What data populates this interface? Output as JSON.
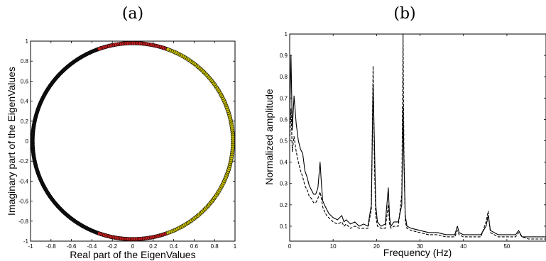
{
  "chart_data": [
    {
      "type": "scatter",
      "panel_label": "(a)",
      "xlabel": "Real part of the EigenValues",
      "ylabel": "Imaginary part of the EigenValues",
      "xlim": [
        -1,
        1
      ],
      "ylim": [
        -1,
        1
      ],
      "xticks": [
        "-1",
        "-0.8",
        "-0.6",
        "-0.4",
        "-0.2",
        "0",
        "0.2",
        "0.4",
        "0.6",
        "0.8",
        "1"
      ],
      "yticks": [
        "-1",
        "-0.8",
        "-0.6",
        "-0.4",
        "-0.2",
        "0",
        "0.2",
        "0.4",
        "0.6",
        "0.8",
        "1"
      ],
      "grid": false,
      "series": [
        {
          "color": "#111111",
          "angle_deg_range": [
            100,
            260
          ],
          "radius": 0.98,
          "count": 160
        },
        {
          "color": "#d02020",
          "angle_deg_range": [
            70,
            110
          ],
          "radius": 0.98,
          "count": 40
        },
        {
          "color": "#d02020",
          "angle_deg_range": [
            250,
            290
          ],
          "radius": 0.98,
          "count": 40
        },
        {
          "color": "#c8c000",
          "angle_deg_range": [
            -70,
            70
          ],
          "radius": 0.98,
          "count": 120
        }
      ]
    },
    {
      "type": "line",
      "panel_label": "(b)",
      "xlabel": "Frequency (Hz)",
      "ylabel": "Normalized amplitude",
      "xlim": [
        0,
        59
      ],
      "ylim": [
        0.03,
        1
      ],
      "xticks": [
        "0",
        "10",
        "20",
        "30",
        "40",
        "50"
      ],
      "yticks": [
        "0.1",
        "0.2",
        "0.3",
        "0.4",
        "0.5",
        "0.6",
        "0.7",
        "0.8",
        "0.9",
        "1"
      ],
      "grid": false,
      "series": [
        {
          "style": "solid",
          "x": [
            0,
            0.3,
            0.6,
            1.0,
            1.5,
            2.0,
            2.5,
            3.0,
            3.5,
            4.0,
            4.5,
            5.0,
            5.5,
            6.0,
            6.5,
            7.0,
            7.3,
            7.6,
            8.0,
            8.5,
            9.0,
            10.0,
            11.0,
            12.0,
            12.5,
            13.0,
            14.0,
            15.0,
            16.0,
            17.0,
            18.0,
            18.8,
            19.2,
            19.5,
            19.8,
            20.2,
            21.0,
            22.0,
            22.7,
            23.0,
            23.3,
            24.0,
            25.0,
            25.8,
            26.1,
            26.3,
            26.6,
            27.0,
            28.0,
            30.0,
            32.0,
            34.0,
            36.0,
            38.0,
            38.6,
            39.0,
            40.0,
            42.0,
            44.0,
            45.2,
            45.7,
            46.2,
            48.0,
            50.0,
            52.0,
            52.7,
            53.5,
            55.0,
            57.0,
            59.0
          ],
          "y": [
            0.6,
            0.9,
            0.55,
            0.71,
            0.58,
            0.5,
            0.46,
            0.44,
            0.36,
            0.33,
            0.29,
            0.27,
            0.25,
            0.25,
            0.28,
            0.4,
            0.3,
            0.22,
            0.2,
            0.18,
            0.16,
            0.14,
            0.13,
            0.15,
            0.12,
            0.13,
            0.11,
            0.12,
            0.1,
            0.11,
            0.1,
            0.2,
            0.76,
            0.5,
            0.2,
            0.12,
            0.1,
            0.11,
            0.28,
            0.14,
            0.1,
            0.12,
            0.12,
            0.2,
            0.66,
            0.4,
            0.15,
            0.1,
            0.09,
            0.08,
            0.07,
            0.07,
            0.06,
            0.06,
            0.1,
            0.07,
            0.06,
            0.06,
            0.06,
            0.1,
            0.15,
            0.08,
            0.06,
            0.06,
            0.06,
            0.08,
            0.05,
            0.05,
            0.05,
            0.05
          ]
        },
        {
          "style": "dashed",
          "x": [
            0,
            0.3,
            0.6,
            1.0,
            1.5,
            2.0,
            2.5,
            3.0,
            3.5,
            4.0,
            4.5,
            5.0,
            5.5,
            6.0,
            6.5,
            7.0,
            7.3,
            7.6,
            8.0,
            8.5,
            9.0,
            10.0,
            11.0,
            12.0,
            12.5,
            13.0,
            14.0,
            15.0,
            16.0,
            17.0,
            18.0,
            18.8,
            19.2,
            19.5,
            19.8,
            20.2,
            21.0,
            22.0,
            22.7,
            23.0,
            23.3,
            24.0,
            25.0,
            25.8,
            26.1,
            26.3,
            26.6,
            27.0,
            28.0,
            30.0,
            32.0,
            34.0,
            36.0,
            38.0,
            38.6,
            39.0,
            40.0,
            42.0,
            44.0,
            45.2,
            45.7,
            46.2,
            48.0,
            50.0,
            52.0,
            52.7,
            53.5,
            55.0,
            57.0,
            59.0
          ],
          "y": [
            0.5,
            0.65,
            0.45,
            0.52,
            0.45,
            0.4,
            0.36,
            0.33,
            0.29,
            0.27,
            0.24,
            0.23,
            0.21,
            0.21,
            0.23,
            0.26,
            0.23,
            0.19,
            0.17,
            0.15,
            0.14,
            0.12,
            0.11,
            0.12,
            0.1,
            0.11,
            0.09,
            0.1,
            0.09,
            0.09,
            0.09,
            0.18,
            0.85,
            0.4,
            0.15,
            0.1,
            0.09,
            0.09,
            0.2,
            0.11,
            0.09,
            0.1,
            0.1,
            0.25,
            1.0,
            0.45,
            0.12,
            0.09,
            0.08,
            0.07,
            0.06,
            0.06,
            0.05,
            0.05,
            0.08,
            0.06,
            0.05,
            0.05,
            0.05,
            0.12,
            0.17,
            0.07,
            0.05,
            0.05,
            0.05,
            0.07,
            0.05,
            0.04,
            0.04,
            0.04
          ]
        }
      ]
    }
  ]
}
